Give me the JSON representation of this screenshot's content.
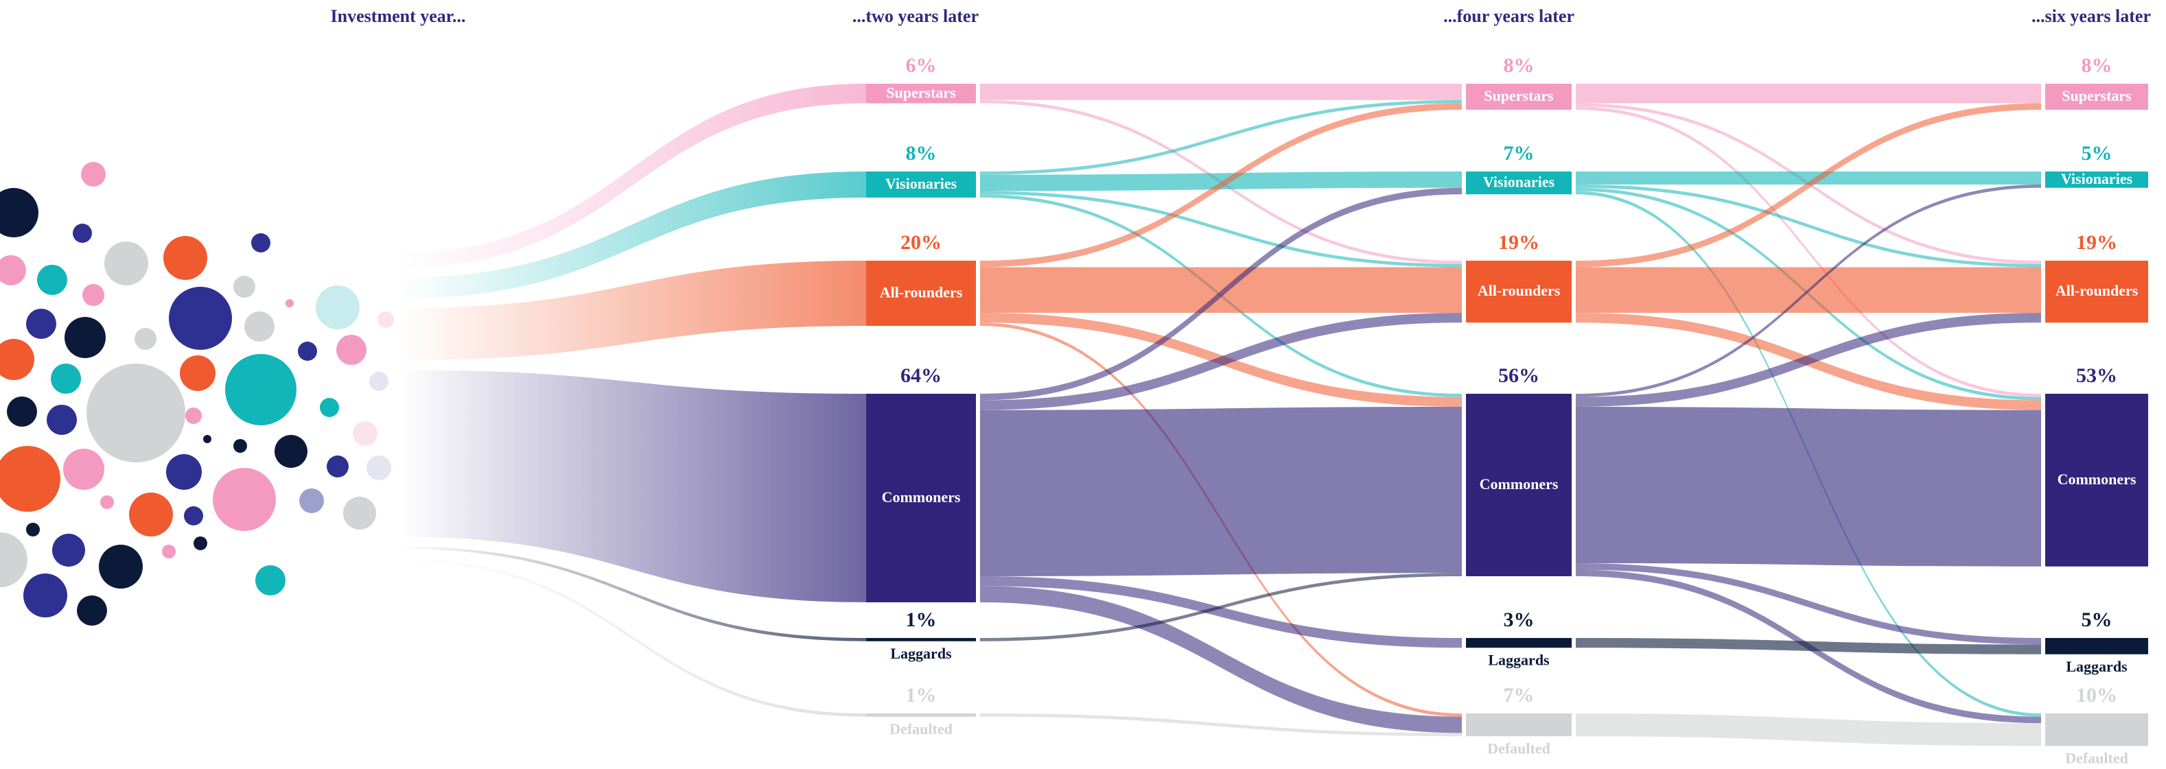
{
  "chart_data": {
    "type": "sankey",
    "stages": [
      "Investment year...",
      "...two years later",
      "...four years later",
      "...six years later"
    ],
    "categories": [
      "Superstars",
      "Visionaries",
      "All-rounders",
      "Commoners",
      "Laggards",
      "Defaulted"
    ],
    "colors": [
      "#f49ac1",
      "#12b5b8",
      "#f05a2f",
      "#31247a",
      "#0c1a3a",
      "#d1d3d4"
    ],
    "columns": [
      {
        "values": [
          6,
          8,
          20,
          64,
          1,
          1
        ],
        "value_labels": [
          "6%",
          "8%",
          "20%",
          "64%",
          "1%",
          "1%"
        ]
      },
      {
        "values": [
          8,
          7,
          19,
          56,
          3,
          7
        ],
        "value_labels": [
          "8%",
          "7%",
          "19%",
          "56%",
          "3%",
          "7%"
        ]
      },
      {
        "values": [
          8,
          5,
          19,
          53,
          5,
          10
        ],
        "value_labels": [
          "8%",
          "5%",
          "19%",
          "53%",
          "5%",
          "10%"
        ]
      }
    ],
    "flows": [
      [
        0,
        0,
        0,
        5
      ],
      [
        0,
        0,
        2,
        1
      ],
      [
        0,
        1,
        0,
        1
      ],
      [
        0,
        1,
        1,
        5
      ],
      [
        0,
        1,
        2,
        1
      ],
      [
        0,
        1,
        3,
        1
      ],
      [
        0,
        2,
        0,
        2
      ],
      [
        0,
        2,
        2,
        14
      ],
      [
        0,
        2,
        3,
        3
      ],
      [
        0,
        2,
        5,
        1
      ],
      [
        0,
        3,
        1,
        2
      ],
      [
        0,
        3,
        2,
        3
      ],
      [
        0,
        3,
        3,
        51
      ],
      [
        0,
        3,
        4,
        3
      ],
      [
        0,
        3,
        5,
        5
      ],
      [
        0,
        4,
        3,
        1
      ],
      [
        0,
        5,
        5,
        1
      ],
      [
        1,
        0,
        0,
        6
      ],
      [
        1,
        0,
        2,
        1
      ],
      [
        1,
        0,
        3,
        1
      ],
      [
        1,
        1,
        1,
        4
      ],
      [
        1,
        1,
        2,
        1
      ],
      [
        1,
        1,
        3,
        1
      ],
      [
        1,
        1,
        5,
        1
      ],
      [
        1,
        2,
        0,
        2
      ],
      [
        1,
        2,
        2,
        14
      ],
      [
        1,
        2,
        3,
        3
      ],
      [
        1,
        3,
        1,
        1
      ],
      [
        1,
        3,
        2,
        3
      ],
      [
        1,
        3,
        3,
        48
      ],
      [
        1,
        3,
        4,
        2
      ],
      [
        1,
        3,
        5,
        2
      ],
      [
        1,
        4,
        4,
        3
      ],
      [
        1,
        5,
        5,
        7
      ]
    ]
  }
}
